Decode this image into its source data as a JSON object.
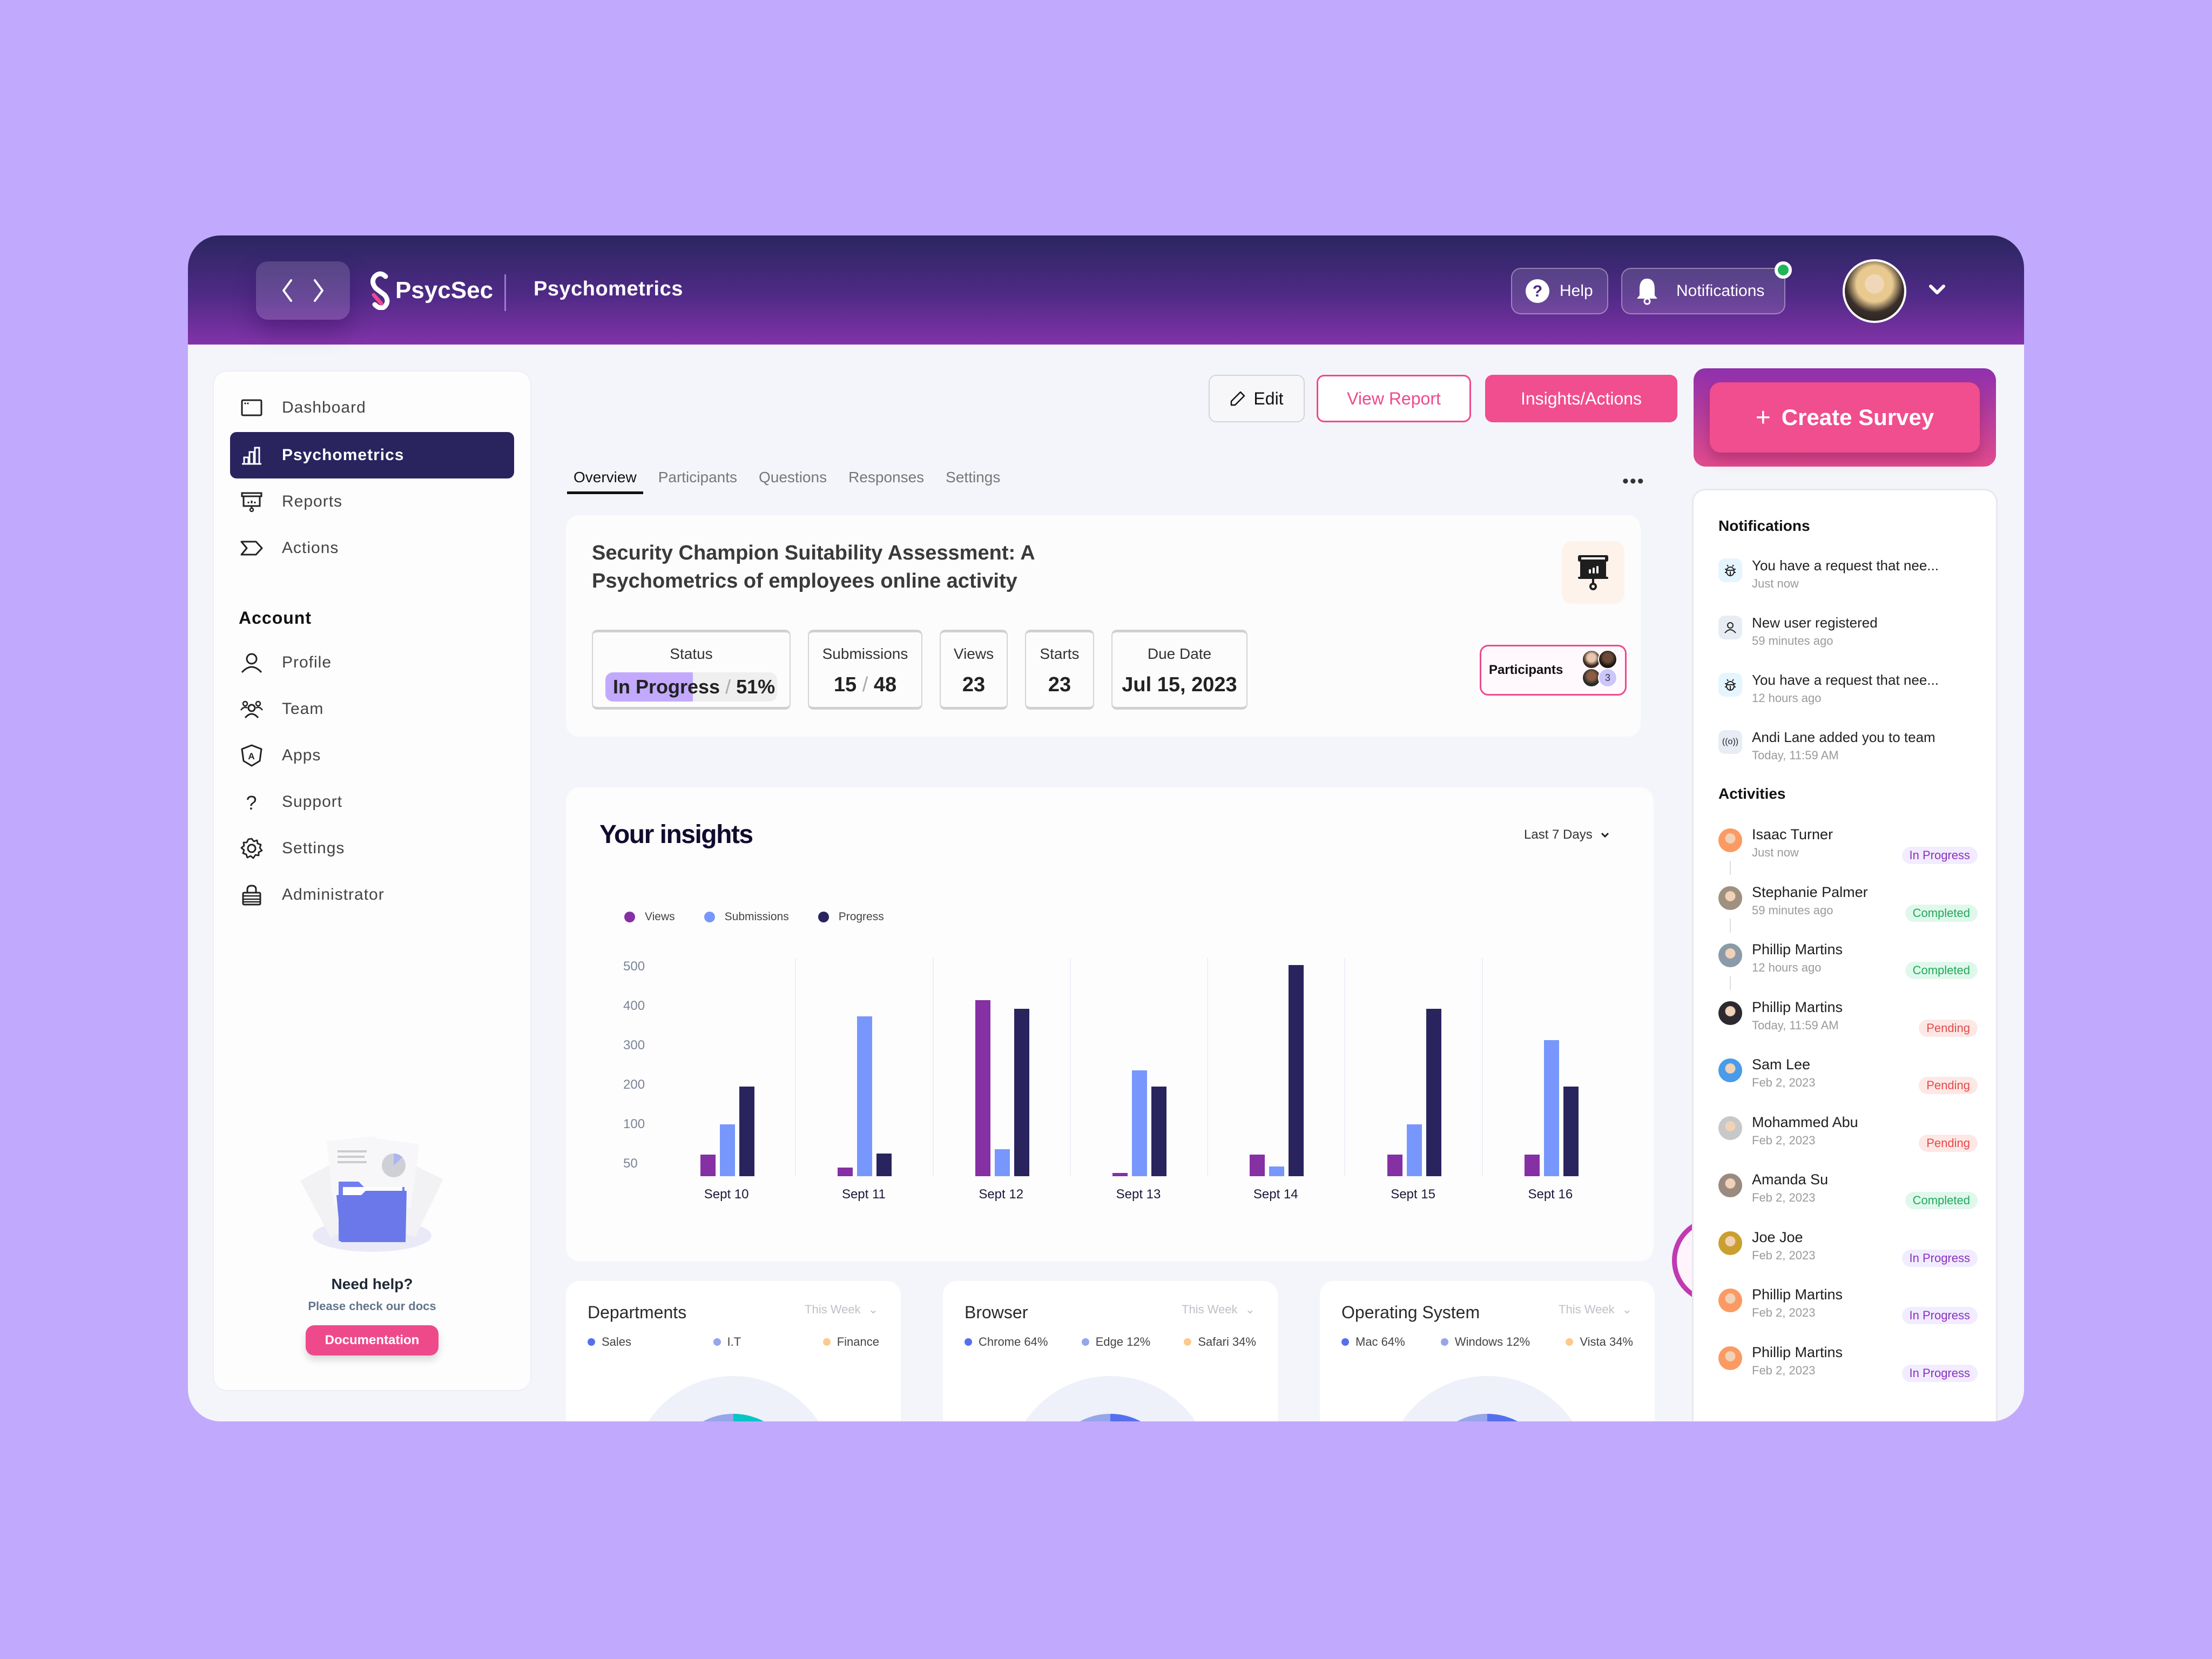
{
  "header": {
    "app_name": "PsycSec",
    "page_title": "Psychometrics",
    "help_label": "Help",
    "notifications_label": "Notifications",
    "notification_dot_color": "#22b45a"
  },
  "sidebar": {
    "items": [
      {
        "label": "Dashboard",
        "icon": "window-icon"
      },
      {
        "label": "Psychometrics",
        "icon": "bar-chart-icon",
        "active": true
      },
      {
        "label": "Reports",
        "icon": "presentation-icon"
      },
      {
        "label": "Actions",
        "icon": "tag-arrow-icon"
      }
    ],
    "account_heading": "Account",
    "account_items": [
      {
        "label": "Profile",
        "icon": "user-icon"
      },
      {
        "label": "Team",
        "icon": "team-icon"
      },
      {
        "label": "Apps",
        "icon": "apps-shield-icon"
      },
      {
        "label": "Support",
        "icon": "question-icon"
      },
      {
        "label": "Settings",
        "icon": "gear-icon"
      },
      {
        "label": "Administrator",
        "icon": "lock-icon"
      }
    ],
    "help": {
      "title": "Need help?",
      "subtitle": "Please check our docs",
      "button": "Documentation"
    }
  },
  "actions": {
    "edit": "Edit",
    "view_report": "View Report",
    "insights": "Insights/Actions",
    "create_survey": "Create Survey"
  },
  "tabs": [
    "Overview",
    "Participants",
    "Questions",
    "Responses",
    "Settings"
  ],
  "survey": {
    "title": "Security Champion Suitability Assessment: A Psychometrics of employees online activity",
    "stats": {
      "status_label": "Status",
      "status_value": "In Progress",
      "status_percent": "51%",
      "submissions_label": "Submissions",
      "submissions_done": "15",
      "submissions_total": "48",
      "views_label": "Views",
      "views_value": "23",
      "starts_label": "Starts",
      "starts_value": "23",
      "due_label": "Due Date",
      "due_value": "Jul 15, 2023"
    },
    "participants_label": "Participants",
    "participants_extra": "3"
  },
  "insights": {
    "title": "Your insights",
    "range": "Last 7 Days"
  },
  "chart_data": {
    "type": "bar",
    "title": "Your insights",
    "categories": [
      "Sept 10",
      "Sept 11",
      "Sept 12",
      "Sept 13",
      "Sept 14",
      "Sept 15",
      "Sept 16"
    ],
    "series": [
      {
        "name": "Views",
        "color": "#8530a3",
        "values": [
          80,
          52,
          410,
          25,
          80,
          80,
          80
        ]
      },
      {
        "name": "Submissions",
        "color": "#7897fc",
        "values": [
          145,
          375,
          92,
          260,
          55,
          145,
          325
        ]
      },
      {
        "name": "Progress",
        "color": "#29245e",
        "values": [
          225,
          82,
          392,
          225,
          485,
          392,
          225
        ]
      }
    ],
    "yticks": [
      "500",
      "400",
      "300",
      "200",
      "100",
      "50"
    ],
    "ylim": [
      50,
      500
    ],
    "legend_position": "top-left",
    "grid": "vertical separators"
  },
  "mini_cards": [
    {
      "title": "Departments",
      "range": "This Week",
      "legend": [
        "Sales",
        "I.T",
        "Finance"
      ],
      "colors": [
        "#5570ee",
        "#97a5ea",
        "#fdc98c"
      ],
      "accent": "#06c5c5"
    },
    {
      "title": "Browser",
      "range": "This Week",
      "legend": [
        "Chrome 64%",
        "Edge 12%",
        "Safari 34%"
      ],
      "colors": [
        "#5570ee",
        "#97a5ea",
        "#fdc98c"
      ],
      "accent": "#5570ee"
    },
    {
      "title": "Operating System",
      "range": "This Week",
      "legend": [
        "Mac 64%",
        "Windows 12%",
        "Vista 34%"
      ],
      "colors": [
        "#5570ee",
        "#97a5ea",
        "#fdc98c"
      ],
      "accent": "#5570ee"
    }
  ],
  "notifications": {
    "heading": "Notifications",
    "items": [
      {
        "text": "You have a request that nee...",
        "time": "Just now",
        "icon": "bug-icon"
      },
      {
        "text": "New user registered",
        "time": "59 minutes ago",
        "icon": "user-icon"
      },
      {
        "text": "You have a request that nee...",
        "time": "12 hours ago",
        "icon": "bug-icon"
      },
      {
        "text": "Andi Lane added you to team",
        "time": "Today, 11:59 AM",
        "icon": "broadcast-icon"
      }
    ]
  },
  "activities": {
    "heading": "Activities",
    "items": [
      {
        "name": "Isaac Turner",
        "time": "Just now",
        "status": "In Progress"
      },
      {
        "name": "Stephanie Palmer",
        "time": "59 minutes ago",
        "status": "Completed"
      },
      {
        "name": "Phillip Martins",
        "time": "12 hours ago",
        "status": "Completed"
      },
      {
        "name": "Phillip Martins",
        "time": "Today, 11:59 AM",
        "status": "Pending"
      },
      {
        "name": "Sam Lee",
        "time": "Feb 2, 2023",
        "status": "Pending"
      },
      {
        "name": "Mohammed Abu",
        "time": "Feb 2, 2023",
        "status": "Pending"
      },
      {
        "name": "Amanda Su",
        "time": "Feb 2, 2023",
        "status": "Completed"
      },
      {
        "name": "Joe Joe",
        "time": "Feb 2, 2023",
        "status": "In Progress"
      },
      {
        "name": "Phillip Martins",
        "time": "Feb 2, 2023",
        "status": "In Progress"
      },
      {
        "name": "Phillip Martins",
        "time": "Feb 2, 2023",
        "status": "In Progress"
      }
    ]
  },
  "colors": {
    "accent_pink": "#f04e8f",
    "nav_active": "#29245e",
    "header_top": "#2b2660",
    "header_bottom": "#8233a8",
    "background": "#c1a9fd"
  }
}
